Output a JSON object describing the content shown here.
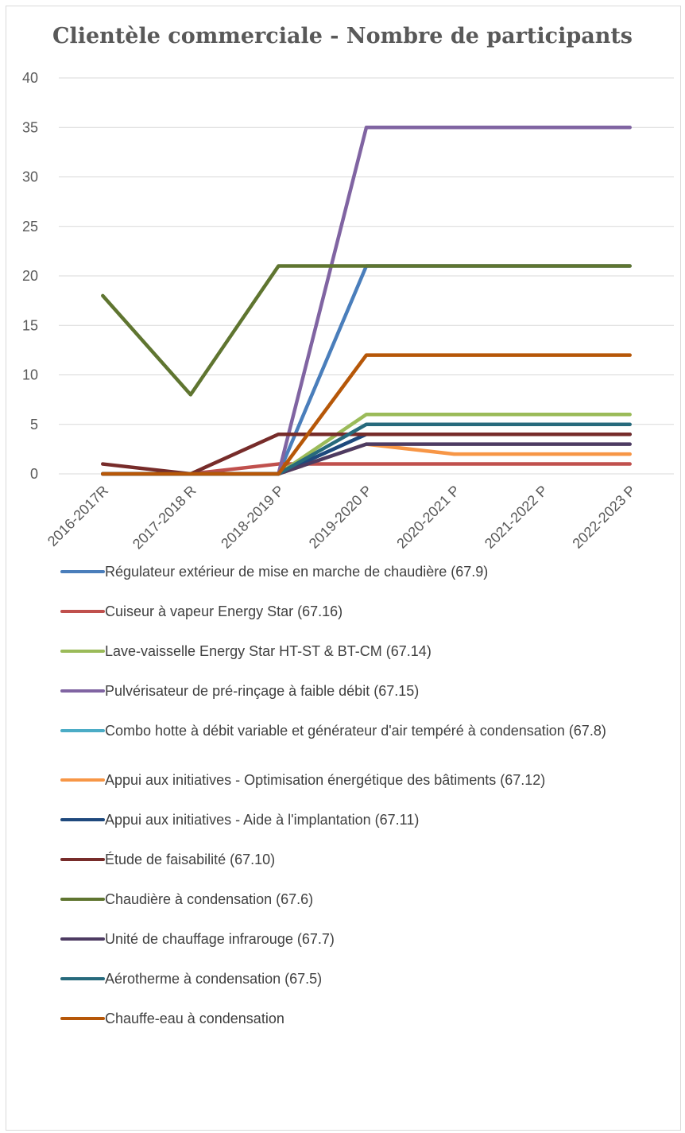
{
  "chart_data": {
    "type": "line",
    "title": "Clientèle commerciale - Nombre de participants",
    "xlabel": "",
    "ylabel": "",
    "categories": [
      "2016-2017R",
      "2017-2018 R",
      "2018-2019 P",
      "2019-2020 P",
      "2020-2021 P",
      "2021-2022 P",
      "2022-2023 P"
    ],
    "ylim": [
      0,
      40
    ],
    "yticks": [
      0,
      5,
      10,
      15,
      20,
      25,
      30,
      35,
      40
    ],
    "grid": true,
    "legend_position": "bottom",
    "series": [
      {
        "name": "Régulateur extérieur de mise en marche de chaudière (67.9)",
        "color": "#4a7ebb",
        "values": [
          0,
          0,
          0,
          21,
          21,
          21,
          21
        ]
      },
      {
        "name": "Cuiseur à vapeur Energy Star (67.16)",
        "color": "#c0504d",
        "values": [
          0,
          0,
          1,
          1,
          1,
          1,
          1
        ]
      },
      {
        "name": "Lave-vaisselle Energy Star HT-ST & BT-CM (67.14)",
        "color": "#9bbb59",
        "values": [
          0,
          0,
          0,
          6,
          6,
          6,
          6
        ]
      },
      {
        "name": "Pulvérisateur de pré-rinçage à faible débit (67.15)",
        "color": "#8064a2",
        "values": [
          0,
          0,
          0,
          35,
          35,
          35,
          35
        ]
      },
      {
        "name": "Combo hotte à débit variable et générateur d'air tempéré à condensation (67.8)",
        "color": "#4bacc6",
        "values": [
          0,
          0,
          0,
          4,
          4,
          4,
          4
        ]
      },
      {
        "name": "Appui aux initiatives - Optimisation énergétique des bâtiments (67.12)",
        "color": "#f79646",
        "values": [
          0,
          0,
          0,
          3,
          2,
          2,
          2
        ]
      },
      {
        "name": "Appui aux initiatives - Aide à l'implantation (67.11)",
        "color": "#1f497d",
        "values": [
          0,
          0,
          0,
          4,
          4,
          4,
          4
        ]
      },
      {
        "name": "Étude de faisabilité (67.10)",
        "color": "#772c2a",
        "values": [
          1,
          0,
          4,
          4,
          4,
          4,
          4
        ]
      },
      {
        "name": "Chaudière à condensation (67.6)",
        "color": "#5f7530",
        "values": [
          18,
          8,
          21,
          21,
          21,
          21,
          21
        ]
      },
      {
        "name": "Unité de chauffage infrarouge (67.7)",
        "color": "#4d3b62",
        "values": [
          0,
          0,
          0,
          3,
          3,
          3,
          3
        ]
      },
      {
        "name": "Aérotherme à condensation (67.5)",
        "color": "#276a7c",
        "values": [
          0,
          0,
          0,
          5,
          5,
          5,
          5
        ]
      },
      {
        "name": "Chauffe-eau à condensation",
        "color": "#b65708",
        "values": [
          0,
          0,
          0,
          12,
          12,
          12,
          12
        ]
      }
    ]
  }
}
